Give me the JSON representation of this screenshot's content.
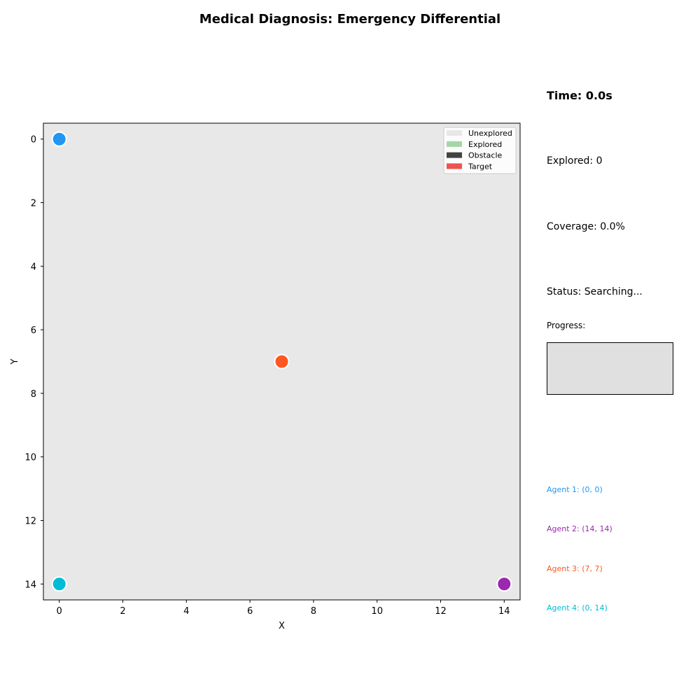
{
  "title": "Medical Diagnosis: Emergency Differential",
  "panel": {
    "time": "Time: 0.0s",
    "explored": "Explored: 0",
    "coverage": "Coverage: 0.0%",
    "status": "Status: Searching...",
    "progress_label": "Progress:",
    "progress_fraction": 0.0
  },
  "agents": [
    {
      "label": "Agent 1: (0, 0)",
      "color": "#2196f3"
    },
    {
      "label": "Agent 2: (14, 14)",
      "color": "#9c27b0"
    },
    {
      "label": "Agent 3: (7, 7)",
      "color": "#ff5722"
    },
    {
      "label": "Agent 4: (0, 14)",
      "color": "#00bcd4"
    }
  ],
  "chart_data": {
    "type": "scatter",
    "xlabel": "X",
    "ylabel": "Y",
    "xlim": [
      -0.5,
      14.5
    ],
    "ylim": [
      14.5,
      -0.5
    ],
    "y_inverted": true,
    "xticks": [
      0,
      2,
      4,
      6,
      8,
      10,
      12,
      14
    ],
    "yticks": [
      0,
      2,
      4,
      6,
      8,
      10,
      12,
      14
    ],
    "grid": false,
    "background_color": "#e8e8e8",
    "legend_position": "top-right",
    "legend": [
      {
        "label": "Unexplored",
        "color": "#e8e8e8"
      },
      {
        "label": "Explored",
        "color": "#a5d6a7"
      },
      {
        "label": "Obstacle",
        "color": "#424242"
      },
      {
        "label": "Target",
        "color": "#ef5350"
      }
    ],
    "points": [
      {
        "x": 0,
        "y": 0,
        "color": "#2196f3"
      },
      {
        "x": 14,
        "y": 14,
        "color": "#9c27b0"
      },
      {
        "x": 7,
        "y": 7,
        "color": "#ff5722"
      },
      {
        "x": 0,
        "y": 14,
        "color": "#00bcd4"
      }
    ]
  }
}
